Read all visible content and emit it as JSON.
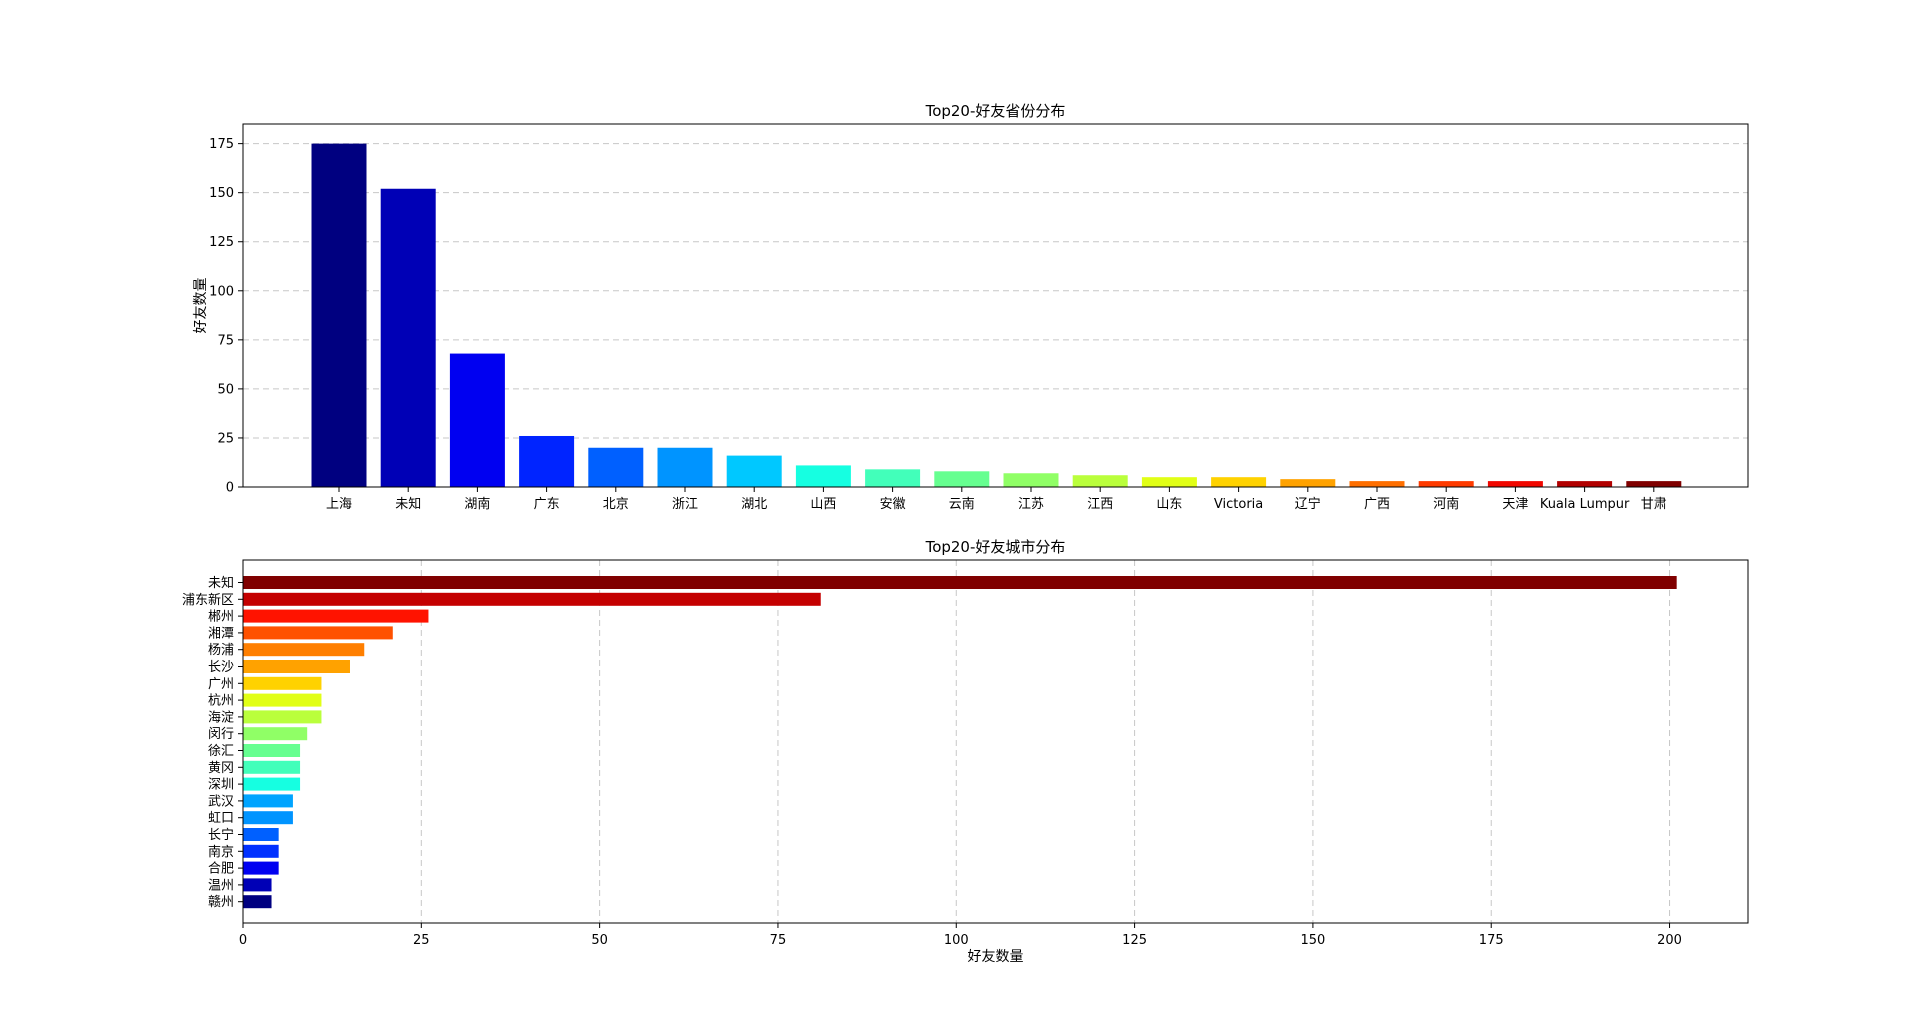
{
  "chart_data": [
    {
      "type": "bar",
      "orientation": "vertical",
      "title": "Top20-好友省份分布",
      "xlabel": "",
      "ylabel": "好友数量",
      "ylim": [
        0,
        185
      ],
      "yticks": [
        0,
        25,
        50,
        75,
        100,
        125,
        150,
        175
      ],
      "grid": "y",
      "categories": [
        "上海",
        "未知",
        "湖南",
        "广东",
        "北京",
        "浙江",
        "湖北",
        "山西",
        "安徽",
        "云南",
        "江苏",
        "江西",
        "山东",
        "Victoria",
        "辽宁",
        "广西",
        "河南",
        "天津",
        "Kuala Lumpur",
        "甘肃"
      ],
      "values": [
        175,
        152,
        68,
        26,
        20,
        20,
        16,
        11,
        9,
        8,
        7,
        6,
        5,
        5,
        4,
        3,
        3,
        3,
        3,
        3
      ],
      "colors": [
        "#000080",
        "#0000b6",
        "#0000f1",
        "#0024ff",
        "#0060ff",
        "#0094ff",
        "#00c8ff",
        "#16ffe1",
        "#42ffba",
        "#66ff90",
        "#90ff66",
        "#baff3c",
        "#e1ff16",
        "#ffd200",
        "#ffa200",
        "#ff6f00",
        "#ff3b00",
        "#f10700",
        "#b20000",
        "#800000"
      ]
    },
    {
      "type": "bar",
      "orientation": "horizontal",
      "title": "Top20-好友城市分布",
      "xlabel": "好友数量",
      "ylabel": "",
      "xlim": [
        0,
        211
      ],
      "xticks": [
        0,
        25,
        50,
        75,
        100,
        125,
        150,
        175,
        200
      ],
      "grid": "x",
      "categories": [
        "未知",
        "浦东新区",
        "郴州",
        "湘潭",
        "杨浦",
        "长沙",
        "广州",
        "杭州",
        "海淀",
        "闵行",
        "徐汇",
        "黄冈",
        "深圳",
        "武汉",
        "虹口",
        "长宁",
        "南京",
        "合肥",
        "温州",
        "赣州"
      ],
      "values": [
        201,
        81,
        26,
        21,
        17,
        15,
        11,
        11,
        11,
        9,
        8,
        8,
        8,
        7,
        7,
        5,
        5,
        5,
        4,
        4
      ],
      "colors": [
        "#800000",
        "#c40000",
        "#ff1300",
        "#ff5100",
        "#ff7f00",
        "#ffa200",
        "#ffd200",
        "#e1ff16",
        "#baff3c",
        "#90ff66",
        "#66ff90",
        "#42ffba",
        "#16ffe1",
        "#00a4ff",
        "#0094ff",
        "#0060ff",
        "#0030ff",
        "#0000f1",
        "#0000b6",
        "#000080"
      ]
    }
  ]
}
